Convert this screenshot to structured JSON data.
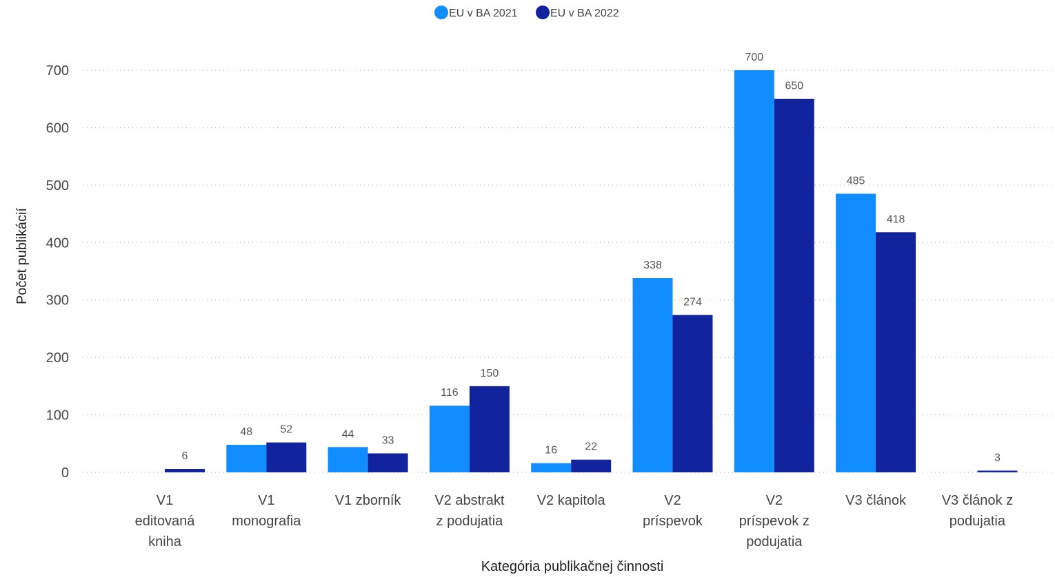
{
  "chart_data": {
    "type": "bar",
    "title": "",
    "xlabel": "Kategória publikačnej činnosti",
    "ylabel": "Počet publikácií",
    "ylim": [
      0,
      700
    ],
    "yticks": [
      0,
      100,
      200,
      300,
      400,
      500,
      600,
      700
    ],
    "grid": true,
    "legend_position": "top-center",
    "categories": [
      [
        "V1",
        "editovaná",
        "kniha"
      ],
      [
        "V1",
        "monografia"
      ],
      [
        "V1 zborník"
      ],
      [
        "V2 abstrakt",
        "z podujatia"
      ],
      [
        "V2 kapitola"
      ],
      [
        "V2",
        "príspevok"
      ],
      [
        "V2",
        "príspevok z",
        "podujatia"
      ],
      [
        "V3 článok"
      ],
      [
        "V3 článok z",
        "podujatia"
      ]
    ],
    "series": [
      {
        "name": "EU v BA 2021",
        "color": "#118dff",
        "values": [
          null,
          48,
          44,
          116,
          16,
          338,
          700,
          485,
          null
        ]
      },
      {
        "name": "EU v BA 2022",
        "color": "#12239e",
        "values": [
          6,
          52,
          33,
          150,
          22,
          274,
          650,
          418,
          3
        ]
      }
    ]
  }
}
